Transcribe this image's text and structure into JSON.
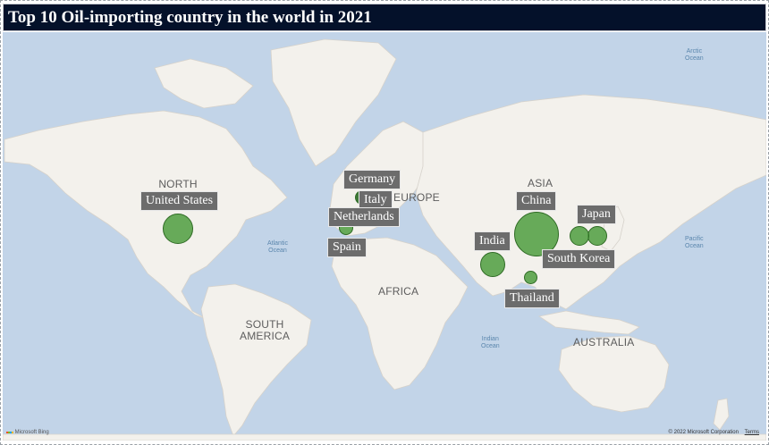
{
  "title": "Top 10 Oil-importing country in the world in 2021",
  "map": {
    "regions": {
      "north_america": "NORTH\nAMERICA",
      "south_america": "SOUTH\nAMERICA",
      "europe": "EUROPE",
      "africa": "AFRICA",
      "asia": "ASIA",
      "australia": "AUSTRALIA"
    },
    "oceans": {
      "arctic": "Arctic\nOcean",
      "atlantic": "Atlantic\nOcean",
      "pacific": "Pacific\nOcean",
      "indian": "Indian\nOcean"
    },
    "countries": [
      {
        "name": "United States"
      },
      {
        "name": "Germany"
      },
      {
        "name": "Italy"
      },
      {
        "name": "Netherlands"
      },
      {
        "name": "Spain"
      },
      {
        "name": "China"
      },
      {
        "name": "Japan"
      },
      {
        "name": "India"
      },
      {
        "name": "South Korea"
      },
      {
        "name": "Thailand"
      }
    ],
    "bubble_color": "#4d9e3f",
    "land_color": "#f3f1ec",
    "water_color": "#c2d4e8"
  },
  "footer": {
    "logo_text": "Microsoft Bing",
    "copyright": "© 2022 Microsoft Corporation",
    "terms": "Terms"
  }
}
